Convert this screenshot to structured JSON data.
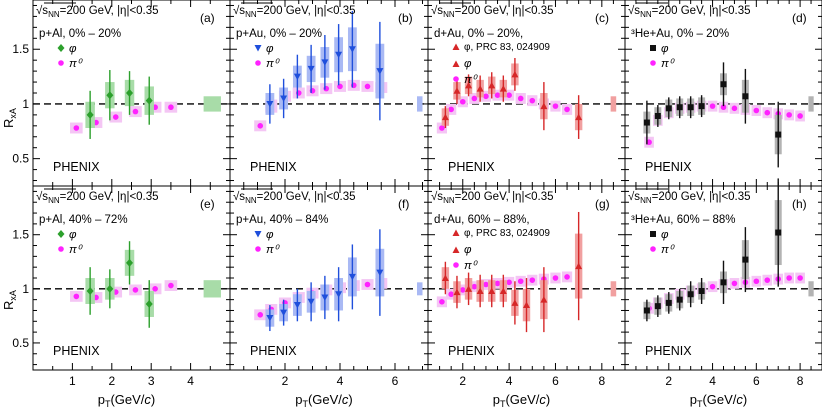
{
  "figure": {
    "y_axis_label": "R",
    "y_axis_sub": "xA",
    "x_axis_label": "p",
    "x_axis_sub": "T",
    "x_axis_unit": "(GeV/",
    "x_axis_unit_c": "c",
    "x_axis_unit_end": ")",
    "experiment": "PHENIX",
    "energy_prefix": "s",
    "energy_sub": "NN",
    "energy_suffix": "=200 GeV, |η|<0.35",
    "y_ticks": [
      0.5,
      1.0,
      1.5
    ],
    "y_tick_labels": [
      "0.5",
      "1",
      "1.5"
    ],
    "colors": {
      "pAl": "#2ca02c",
      "pAu": "#1f4fdc",
      "dAu": "#d62728",
      "HeAu": "#111111",
      "pi0": "#ff22ff",
      "pAl_band": "#a8dca8",
      "pAu_band": "#a9b9f4",
      "dAu_band": "#f1a0a0",
      "HeAu_band": "#b3b3b3",
      "pi0_band": "#f4c6f4"
    }
  },
  "columns": [
    {
      "id": "pAl",
      "x_min": 0,
      "x_max": 5,
      "x_ticks": [
        1,
        2,
        3,
        4
      ],
      "x_tick_labels": [
        "1",
        "2",
        "3",
        "4"
      ],
      "global_box_x": 4.55,
      "global_box_half": 0.22
    },
    {
      "id": "pAu",
      "x_min": 0,
      "x_max": 7.2,
      "x_ticks": [
        2,
        4,
        6
      ],
      "x_tick_labels": [
        "2",
        "4",
        "6"
      ],
      "global_box_x": 6.9,
      "global_box_half": 0.1
    },
    {
      "id": "dAu",
      "x_min": 0.5,
      "x_max": 9,
      "x_ticks": [
        2,
        4,
        6,
        8
      ],
      "x_tick_labels": [
        "2",
        "4",
        "6",
        "8"
      ],
      "global_box_x": 8.5,
      "global_box_half": 0.12
    },
    {
      "id": "HeAu",
      "x_min": 0,
      "x_max": 9,
      "x_ticks": [
        2,
        4,
        6,
        8
      ],
      "x_tick_labels": [
        "2",
        "4",
        "6",
        "8"
      ],
      "global_box_x": 8.5,
      "global_box_half": 0.12
    }
  ],
  "chart_data": [
    {
      "type": "scatter",
      "panel_label": "(a)",
      "row": 0,
      "col": 0,
      "system": "p+Al, 0% – 20%",
      "ref": "",
      "legend": [
        "φ",
        "π⁰"
      ],
      "xlabel": "pT (GeV/c)",
      "ylabel": "RxA",
      "ylim": [
        0.25,
        1.95
      ],
      "global_box": [
        0.93,
        1.07
      ],
      "phi": [
        [
          1.45,
          0.9,
          0.22,
          0.12
        ],
        [
          1.95,
          1.08,
          0.23,
          0.12
        ],
        [
          2.45,
          1.1,
          0.2,
          0.12
        ],
        [
          2.95,
          1.03,
          0.22,
          0.13
        ]
      ],
      "pi0": [
        [
          1.1,
          0.78,
          0.05
        ],
        [
          1.6,
          0.83,
          0.05
        ],
        [
          2.1,
          0.88,
          0.05
        ],
        [
          2.6,
          0.93,
          0.05
        ],
        [
          3.1,
          0.97,
          0.05
        ],
        [
          3.5,
          0.97,
          0.05
        ]
      ]
    },
    {
      "type": "scatter",
      "panel_label": "(b)",
      "row": 0,
      "col": 1,
      "system": "p+Au, 0% – 20%",
      "ref": "",
      "legend": [
        "φ",
        "π⁰"
      ],
      "xlabel": "pT (GeV/c)",
      "ylabel": "RxA",
      "ylim": [
        0.25,
        1.95
      ],
      "global_box": [
        0.93,
        1.07
      ],
      "phi": [
        [
          1.45,
          1.0,
          0.18,
          0.1
        ],
        [
          1.95,
          1.05,
          0.18,
          0.1
        ],
        [
          2.45,
          1.25,
          0.2,
          0.1
        ],
        [
          2.95,
          1.32,
          0.22,
          0.12
        ],
        [
          3.45,
          1.38,
          0.25,
          0.14
        ],
        [
          3.95,
          1.45,
          0.28,
          0.16
        ],
        [
          4.45,
          1.5,
          0.35,
          0.2
        ],
        [
          5.45,
          1.3,
          0.45,
          0.25
        ]
      ],
      "pi0": [
        [
          1.1,
          0.8,
          0.05
        ],
        [
          1.5,
          0.98,
          0.06
        ],
        [
          2.0,
          1.07,
          0.05
        ],
        [
          2.5,
          1.1,
          0.05
        ],
        [
          3.0,
          1.12,
          0.05
        ],
        [
          3.5,
          1.14,
          0.05
        ],
        [
          4.0,
          1.16,
          0.05
        ],
        [
          4.5,
          1.17,
          0.05
        ],
        [
          5.0,
          1.16,
          0.05
        ],
        [
          5.5,
          1.15,
          0.05
        ]
      ]
    },
    {
      "type": "scatter",
      "panel_label": "(c)",
      "row": 0,
      "col": 2,
      "system": "d+Au, 0% – 20%,",
      "ref": "φ, PRC 83, 024909",
      "legend": [
        "φ",
        "π⁰"
      ],
      "xlabel": "pT (GeV/c)",
      "ylabel": "RxA",
      "ylim": [
        0.25,
        1.95
      ],
      "global_box": [
        0.93,
        1.07
      ],
      "phi": [
        [
          1.25,
          0.88,
          0.1,
          0.08
        ],
        [
          1.75,
          1.12,
          0.12,
          0.08
        ],
        [
          2.25,
          1.17,
          0.1,
          0.08
        ],
        [
          2.75,
          1.14,
          0.12,
          0.08
        ],
        [
          3.25,
          1.17,
          0.12,
          0.08
        ],
        [
          3.75,
          1.14,
          0.12,
          0.08
        ],
        [
          4.25,
          1.27,
          0.15,
          0.1
        ],
        [
          5.5,
          0.98,
          0.22,
          0.12
        ],
        [
          7.0,
          0.88,
          0.2,
          0.12
        ]
      ],
      "pi0": [
        [
          1.1,
          0.78,
          0.05
        ],
        [
          1.5,
          0.95,
          0.05
        ],
        [
          2.0,
          1.02,
          0.05
        ],
        [
          2.5,
          1.05,
          0.05
        ],
        [
          3.0,
          1.07,
          0.05
        ],
        [
          3.5,
          1.08,
          0.05
        ],
        [
          4.0,
          1.08,
          0.05
        ],
        [
          4.5,
          1.05,
          0.05
        ],
        [
          5.0,
          1.03,
          0.05
        ],
        [
          5.5,
          1.0,
          0.05
        ],
        [
          6.0,
          0.98,
          0.05
        ],
        [
          6.5,
          0.95,
          0.05
        ]
      ]
    },
    {
      "type": "scatter",
      "panel_label": "(d)",
      "row": 0,
      "col": 3,
      "system": "³He+Au, 0% – 20%",
      "ref": "",
      "legend": [
        "φ",
        "π⁰"
      ],
      "xlabel": "pT (GeV/c)",
      "ylabel": "RxA",
      "ylim": [
        0.25,
        1.95
      ],
      "global_box": [
        0.93,
        1.07
      ],
      "phi": [
        [
          1.0,
          0.83,
          0.2,
          0.1
        ],
        [
          1.5,
          0.89,
          0.1,
          0.08
        ],
        [
          2.0,
          0.96,
          0.1,
          0.08
        ],
        [
          2.5,
          0.97,
          0.1,
          0.08
        ],
        [
          3.0,
          0.97,
          0.1,
          0.08
        ],
        [
          3.5,
          0.98,
          0.1,
          0.08
        ],
        [
          4.5,
          1.18,
          0.2,
          0.1
        ],
        [
          5.5,
          1.07,
          0.25,
          0.15
        ],
        [
          7.0,
          0.72,
          0.3,
          0.18
        ]
      ],
      "pi0": [
        [
          1.1,
          0.65,
          0.05
        ],
        [
          1.5,
          0.85,
          0.05
        ],
        [
          2.0,
          0.92,
          0.05
        ],
        [
          2.5,
          0.96,
          0.05
        ],
        [
          3.0,
          0.97,
          0.05
        ],
        [
          3.5,
          0.98,
          0.05
        ],
        [
          4.0,
          0.98,
          0.05
        ],
        [
          4.5,
          0.97,
          0.05
        ],
        [
          5.0,
          0.96,
          0.05
        ],
        [
          5.5,
          0.95,
          0.05
        ],
        [
          6.0,
          0.94,
          0.05
        ],
        [
          6.5,
          0.92,
          0.05
        ],
        [
          7.0,
          0.91,
          0.05
        ],
        [
          7.5,
          0.9,
          0.05
        ],
        [
          8.0,
          0.89,
          0.05
        ]
      ]
    },
    {
      "type": "scatter",
      "panel_label": "(e)",
      "row": 1,
      "col": 0,
      "system": "p+Al, 40% – 72%",
      "ref": "",
      "legend": [
        "φ",
        "π⁰"
      ],
      "xlabel": "pT (GeV/c)",
      "ylabel": "RxA",
      "ylim": [
        0.25,
        1.95
      ],
      "global_box": [
        0.92,
        1.08
      ],
      "phi": [
        [
          1.45,
          0.98,
          0.22,
          0.12
        ],
        [
          1.95,
          1.0,
          0.18,
          0.1
        ],
        [
          2.45,
          1.24,
          0.2,
          0.12
        ],
        [
          2.95,
          0.86,
          0.22,
          0.12
        ]
      ],
      "pi0": [
        [
          1.1,
          0.93,
          0.05
        ],
        [
          1.6,
          0.92,
          0.05
        ],
        [
          2.1,
          0.97,
          0.05
        ],
        [
          2.6,
          0.99,
          0.05
        ],
        [
          3.1,
          1.0,
          0.05
        ],
        [
          3.5,
          1.03,
          0.05
        ]
      ]
    },
    {
      "type": "scatter",
      "panel_label": "(f)",
      "row": 1,
      "col": 1,
      "system": "p+Au, 40% – 84%",
      "ref": "",
      "legend": [
        "φ",
        "π⁰"
      ],
      "xlabel": "pT (GeV/c)",
      "ylabel": "RxA",
      "ylim": [
        0.25,
        1.95
      ],
      "global_box": [
        0.94,
        1.06
      ],
      "phi": [
        [
          1.45,
          0.73,
          0.12,
          0.08
        ],
        [
          1.95,
          0.78,
          0.12,
          0.08
        ],
        [
          2.45,
          0.85,
          0.15,
          0.1
        ],
        [
          2.95,
          0.88,
          0.18,
          0.1
        ],
        [
          3.45,
          0.92,
          0.2,
          0.12
        ],
        [
          3.95,
          0.95,
          0.25,
          0.15
        ],
        [
          4.45,
          1.11,
          0.3,
          0.18
        ],
        [
          5.45,
          1.15,
          0.4,
          0.22
        ]
      ],
      "pi0": [
        [
          1.1,
          0.76,
          0.05
        ],
        [
          1.5,
          0.81,
          0.05
        ],
        [
          2.0,
          0.87,
          0.05
        ],
        [
          2.5,
          0.92,
          0.05
        ],
        [
          3.0,
          0.96,
          0.05
        ],
        [
          3.5,
          0.99,
          0.05
        ],
        [
          4.0,
          1.01,
          0.05
        ],
        [
          4.5,
          1.03,
          0.05
        ],
        [
          5.0,
          1.04,
          0.05
        ],
        [
          5.5,
          1.05,
          0.05
        ]
      ]
    },
    {
      "type": "scatter",
      "panel_label": "(g)",
      "row": 1,
      "col": 2,
      "system": "d+Au, 60% – 88%,",
      "ref": "φ, PRC 83, 024909",
      "legend": [
        "φ",
        "π⁰"
      ],
      "xlabel": "pT (GeV/c)",
      "ylabel": "RxA",
      "ylim": [
        0.25,
        1.95
      ],
      "global_box": [
        0.93,
        1.07
      ],
      "phi": [
        [
          1.25,
          1.1,
          0.15,
          0.1
        ],
        [
          1.75,
          0.97,
          0.15,
          0.1
        ],
        [
          2.25,
          1.0,
          0.15,
          0.1
        ],
        [
          2.75,
          0.98,
          0.15,
          0.1
        ],
        [
          3.25,
          0.98,
          0.15,
          0.1
        ],
        [
          3.75,
          0.98,
          0.15,
          0.1
        ],
        [
          4.25,
          0.87,
          0.2,
          0.12
        ],
        [
          4.75,
          0.85,
          0.25,
          0.15
        ],
        [
          5.5,
          0.9,
          0.3,
          0.18
        ],
        [
          7.0,
          1.21,
          0.5,
          0.3
        ]
      ],
      "pi0": [
        [
          1.1,
          0.88,
          0.05
        ],
        [
          1.5,
          0.95,
          0.05
        ],
        [
          2.0,
          0.99,
          0.05
        ],
        [
          2.5,
          1.02,
          0.05
        ],
        [
          3.0,
          1.04,
          0.05
        ],
        [
          3.5,
          1.05,
          0.05
        ],
        [
          4.0,
          1.06,
          0.05
        ],
        [
          4.5,
          1.07,
          0.05
        ],
        [
          5.0,
          1.08,
          0.05
        ],
        [
          5.5,
          1.09,
          0.05
        ],
        [
          6.0,
          1.1,
          0.05
        ],
        [
          6.5,
          1.11,
          0.05
        ]
      ]
    },
    {
      "type": "scatter",
      "panel_label": "(h)",
      "row": 1,
      "col": 3,
      "system": "³He+Au, 60% – 88%",
      "ref": "",
      "legend": [
        "φ",
        "π⁰"
      ],
      "xlabel": "pT (GeV/c)",
      "ylabel": "RxA",
      "ylim": [
        0.25,
        1.95
      ],
      "global_box": [
        0.93,
        1.07
      ],
      "phi": [
        [
          1.0,
          0.8,
          0.1,
          0.08
        ],
        [
          1.5,
          0.84,
          0.1,
          0.08
        ],
        [
          2.0,
          0.87,
          0.1,
          0.08
        ],
        [
          2.5,
          0.9,
          0.1,
          0.08
        ],
        [
          3.0,
          0.95,
          0.12,
          0.08
        ],
        [
          3.5,
          0.98,
          0.12,
          0.08
        ],
        [
          4.5,
          1.06,
          0.2,
          0.1
        ],
        [
          5.5,
          1.27,
          0.3,
          0.18
        ],
        [
          7.0,
          1.52,
          0.5,
          0.3
        ]
      ],
      "pi0": [
        [
          1.1,
          0.82,
          0.05
        ],
        [
          1.5,
          0.87,
          0.05
        ],
        [
          2.0,
          0.91,
          0.05
        ],
        [
          2.5,
          0.95,
          0.05
        ],
        [
          3.0,
          0.98,
          0.05
        ],
        [
          3.5,
          1.0,
          0.05
        ],
        [
          4.0,
          1.02,
          0.05
        ],
        [
          4.5,
          1.04,
          0.05
        ],
        [
          5.0,
          1.05,
          0.05
        ],
        [
          5.5,
          1.06,
          0.05
        ],
        [
          6.0,
          1.07,
          0.05
        ],
        [
          6.5,
          1.08,
          0.05
        ],
        [
          7.0,
          1.09,
          0.05
        ],
        [
          7.5,
          1.1,
          0.05
        ],
        [
          8.0,
          1.1,
          0.05
        ]
      ]
    }
  ]
}
